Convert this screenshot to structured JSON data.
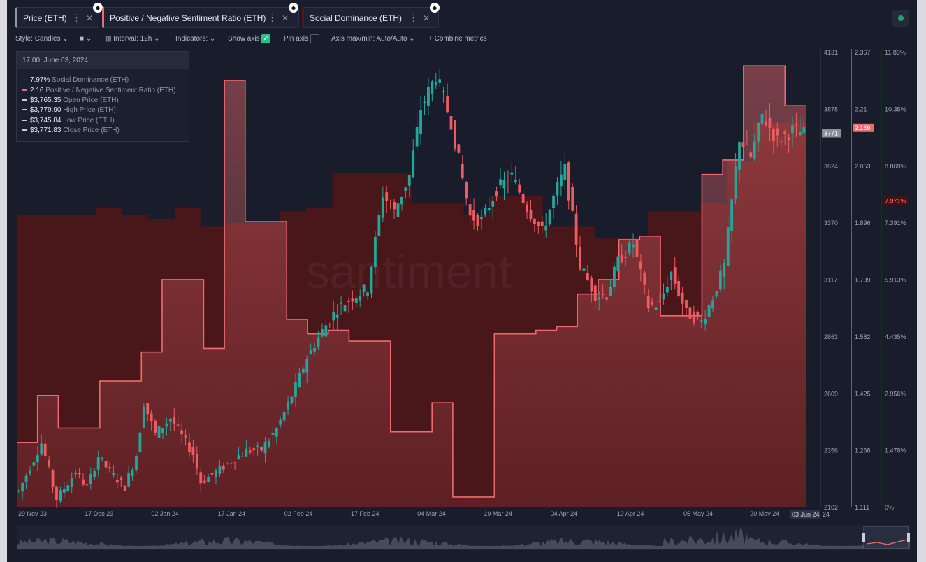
{
  "tabs": [
    {
      "label": "Price (ETH)",
      "color": "#8e96aa"
    },
    {
      "label": "Positive / Negative Sentiment Ratio (ETH)",
      "color": "#ef6a6d"
    },
    {
      "label": "Social Dominance (ETH)",
      "color": "#5a1416"
    }
  ],
  "toolbar": {
    "style": "Style: Candles",
    "interval": "Interval: 12h",
    "indicators": "Indicators:",
    "show_axis": "Show axis",
    "pin_axis": "Pin axis",
    "axis_maxmin": "Axis max/min: Auto/Auto",
    "combine": "Combine metrics"
  },
  "tooltip": {
    "date": "17:00, June 03, 2024",
    "rows": [
      {
        "value": "7.97%",
        "label": "Social Dominance (ETH)",
        "color": "#5a1416"
      },
      {
        "value": "2.16",
        "label": "Positive / Negative Sentiment Ratio (ETH)",
        "color": "#ef6a6d"
      },
      {
        "value": "$3,765.35",
        "label": "Open Price (ETH)",
        "color": "#c8ccd6"
      },
      {
        "value": "$3,779.90",
        "label": "High Price (ETH)",
        "color": "#c8ccd6"
      },
      {
        "value": "$3,745.84",
        "label": "Low Price (ETH)",
        "color": "#c8ccd6"
      },
      {
        "value": "$3,771.83",
        "label": "Close Price (ETH)",
        "color": "#c8ccd6"
      }
    ]
  },
  "watermark": "santiment",
  "chart_data": {
    "type": "line",
    "x_labels": [
      "29 Nov 23",
      "17 Dec 23",
      "02 Jan 24",
      "17 Jan 24",
      "02 Feb 24",
      "17 Feb 24",
      "04 Mar 24",
      "19 Mar 24",
      "04 Apr 24",
      "19 Apr 24",
      "05 May 24",
      "20 May 24"
    ],
    "x_selected": "03 Jun 24",
    "x_tail_label": "24",
    "axes": {
      "price": {
        "ticks": [
          "4131",
          "3878",
          "3624",
          "3370",
          "3117",
          "2863",
          "2609",
          "2356",
          "2102"
        ],
        "range": [
          2102,
          4131
        ],
        "current": "3771"
      },
      "sentiment": {
        "ticks": [
          "2.367",
          "2.21",
          "2.053",
          "1.896",
          "1.739",
          "1.582",
          "1.425",
          "1.268",
          "1.111"
        ],
        "range": [
          1.111,
          2.367
        ],
        "current": "2.159"
      },
      "dominance": {
        "ticks": [
          "11.83%",
          "10.35%",
          "8.869%",
          "7.391%",
          "5.913%",
          "4.435%",
          "2.956%",
          "1.478%",
          "0%"
        ],
        "range": [
          0,
          11.83
        ],
        "current": "7.971%"
      }
    },
    "series": [
      {
        "name": "Social Dominance (ETH)",
        "type": "step-area",
        "color": "#5a1416",
        "values": [
          7.6,
          7.6,
          7.6,
          7.8,
          7.6,
          7.5,
          7.8,
          7.3,
          7.4,
          7.4,
          7.7,
          7.8,
          8.7,
          8.7,
          8.7,
          7.9,
          7.9,
          7.6,
          8.1,
          8.1,
          7.3,
          7.3,
          7.0,
          7.0,
          7.7,
          7.7,
          7.9,
          9.0,
          10.0,
          10.0
        ]
      },
      {
        "name": "Positive / Negative Sentiment Ratio (ETH)",
        "type": "step",
        "color": "#ef6a6d",
        "values": [
          1.29,
          1.42,
          1.33,
          1.33,
          1.46,
          1.46,
          1.54,
          1.74,
          1.74,
          1.55,
          2.29,
          1.9,
          1.9,
          1.63,
          1.59,
          1.6,
          1.57,
          1.57,
          1.32,
          1.32,
          1.4,
          1.14,
          1.14,
          1.59,
          1.59,
          1.6,
          1.61,
          1.7,
          1.74,
          1.85,
          1.86,
          1.64,
          1.64,
          2.03,
          2.07,
          2.33,
          2.33,
          2.22
        ]
      },
      {
        "name": "Price (ETH)",
        "type": "candles",
        "color": "#26a69a",
        "points": [
          [
            0,
            2175
          ],
          [
            6,
            2390
          ],
          [
            10,
            2140
          ],
          [
            15,
            2260
          ],
          [
            18,
            2190
          ],
          [
            21,
            2330
          ],
          [
            24,
            2260
          ],
          [
            28,
            2195
          ],
          [
            31,
            2335
          ],
          [
            33,
            2570
          ],
          [
            36,
            2430
          ],
          [
            40,
            2500
          ],
          [
            43,
            2420
          ],
          [
            46,
            2340
          ],
          [
            48,
            2215
          ],
          [
            52,
            2260
          ],
          [
            56,
            2310
          ],
          [
            60,
            2355
          ],
          [
            64,
            2360
          ],
          [
            68,
            2450
          ],
          [
            72,
            2600
          ],
          [
            76,
            2770
          ],
          [
            80,
            2890
          ],
          [
            84,
            2990
          ],
          [
            88,
            3040
          ],
          [
            92,
            3080
          ],
          [
            96,
            3500
          ],
          [
            99,
            3420
          ],
          [
            103,
            3580
          ],
          [
            106,
            3880
          ],
          [
            110,
            4030
          ],
          [
            114,
            3820
          ],
          [
            116,
            3650
          ],
          [
            119,
            3400
          ],
          [
            122,
            3380
          ],
          [
            126,
            3520
          ],
          [
            130,
            3580
          ],
          [
            134,
            3440
          ],
          [
            138,
            3330
          ],
          [
            142,
            3530
          ],
          [
            144,
            3610
          ],
          [
            148,
            3180
          ],
          [
            152,
            3050
          ],
          [
            155,
            3050
          ],
          [
            158,
            3200
          ],
          [
            162,
            3280
          ],
          [
            166,
            3000
          ],
          [
            169,
            3010
          ],
          [
            172,
            3150
          ],
          [
            176,
            2970
          ],
          [
            180,
            2930
          ],
          [
            183,
            3040
          ],
          [
            186,
            3180
          ],
          [
            190,
            3750
          ],
          [
            193,
            3660
          ],
          [
            196,
            3850
          ],
          [
            200,
            3740
          ],
          [
            204,
            3785
          ],
          [
            207,
            3771
          ]
        ]
      },
      {
        "name": "Volume",
        "type": "area",
        "color": "#6b7287"
      }
    ]
  }
}
